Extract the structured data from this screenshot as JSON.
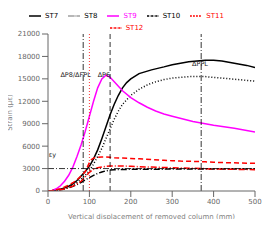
{
  "chart_data": {
    "type": "line",
    "xlabel": "Vertical displacement of removed column (mm)",
    "ylabel": "Strain (με)",
    "xlim": [
      0,
      500
    ],
    "ylim": [
      0,
      21000
    ],
    "xticks": [
      0,
      100,
      200,
      300,
      400,
      500
    ],
    "yticks": [
      0,
      3000,
      6000,
      9000,
      12000,
      15000,
      18000,
      21000
    ],
    "legend": "top",
    "series": [
      {
        "name": "ST7",
        "color": "black",
        "line_style": "solid",
        "x": [
          0,
          10,
          20,
          30,
          40,
          50,
          60,
          70,
          80,
          90,
          100,
          110,
          120,
          130,
          140,
          150,
          160,
          170,
          180,
          190,
          200,
          220,
          250,
          280,
          300,
          320,
          340,
          360,
          380,
          400,
          420,
          440,
          460,
          480,
          500
        ],
        "values": [
          0,
          50,
          130,
          250,
          420,
          650,
          950,
          1400,
          2000,
          2600,
          3300,
          4300,
          5500,
          7000,
          8600,
          10200,
          11600,
          12800,
          13800,
          14500,
          15000,
          15700,
          16200,
          16600,
          16900,
          17100,
          17300,
          17400,
          17500,
          17500,
          17400,
          17200,
          17000,
          16800,
          16500
        ]
      },
      {
        "name": "ST8",
        "color": "black",
        "line_style": "dotted",
        "x": [
          0,
          10,
          20,
          30,
          40,
          50,
          60,
          70,
          80,
          90,
          100,
          110,
          120,
          130,
          140,
          150,
          160,
          170,
          180,
          200,
          220,
          240,
          260,
          280,
          300,
          320,
          340,
          360,
          380,
          400,
          420,
          440,
          460,
          480,
          500
        ],
        "values": [
          0,
          40,
          100,
          200,
          350,
          540,
          800,
          1150,
          1600,
          2100,
          2700,
          3600,
          4600,
          5700,
          7000,
          8300,
          9600,
          10700,
          11600,
          12800,
          13600,
          14200,
          14600,
          14900,
          15100,
          15200,
          15300,
          15300,
          15300,
          15200,
          15100,
          15000,
          14900,
          14800,
          14700
        ]
      },
      {
        "name": "ST9",
        "color": "#ff00ff",
        "line_style": "solid",
        "x": [
          0,
          10,
          20,
          30,
          40,
          50,
          60,
          70,
          80,
          90,
          100,
          110,
          120,
          130,
          140,
          150,
          160,
          170,
          180,
          200,
          220,
          240,
          260,
          280,
          300,
          350,
          400,
          450,
          500
        ],
        "values": [
          0,
          80,
          300,
          700,
          1300,
          2100,
          3200,
          4600,
          6200,
          8000,
          10000,
          12000,
          13800,
          15000,
          15500,
          15200,
          14600,
          14000,
          13400,
          12500,
          11800,
          11200,
          10700,
          10300,
          10000,
          9300,
          8800,
          8400,
          7900
        ]
      },
      {
        "name": "ST10",
        "color": "black",
        "line_style": "dashdot",
        "x": [
          0,
          10,
          20,
          30,
          40,
          50,
          60,
          70,
          80,
          90,
          100,
          110,
          120,
          130,
          140,
          150,
          160,
          180,
          200,
          250,
          300,
          350,
          400,
          450,
          500
        ],
        "values": [
          0,
          30,
          80,
          160,
          280,
          430,
          620,
          860,
          1150,
          1480,
          1800,
          2100,
          2350,
          2550,
          2700,
          2800,
          2850,
          2880,
          2900,
          2920,
          2930,
          2930,
          2930,
          2930,
          2930
        ]
      },
      {
        "name": "ST11",
        "color": "red",
        "line_style": "dashed",
        "x": [
          0,
          10,
          20,
          30,
          40,
          50,
          60,
          70,
          80,
          90,
          95,
          100,
          105,
          110,
          120,
          130,
          140,
          150,
          160,
          180,
          200,
          220,
          250,
          280,
          300,
          320,
          340,
          360,
          380,
          400,
          420,
          440,
          460,
          480,
          500
        ],
        "values": [
          0,
          60,
          160,
          320,
          540,
          800,
          1100,
          1500,
          2000,
          2600,
          3200,
          3800,
          4200,
          4400,
          4500,
          4550,
          4550,
          4500,
          4450,
          4400,
          4350,
          4300,
          4200,
          4100,
          4050,
          4000,
          3980,
          3950,
          3900,
          3850,
          3800,
          3780,
          3750,
          3720,
          3700
        ]
      },
      {
        "name": "ST12",
        "color": "red",
        "line_style": "dashdot",
        "x": [
          0,
          20,
          40,
          60,
          80,
          90,
          100,
          110,
          120,
          130,
          140,
          150,
          160,
          180,
          200,
          220,
          250,
          280,
          300,
          350,
          400,
          450,
          500
        ],
        "values": [
          0,
          80,
          280,
          650,
          1300,
          1900,
          2500,
          2900,
          3100,
          3200,
          3300,
          3350,
          3350,
          3350,
          3300,
          3250,
          3200,
          3150,
          3100,
          3050,
          2950,
          2900,
          2850
        ]
      }
    ],
    "vlines": [
      {
        "x": 85,
        "color": "black",
        "line_style": "dashdot"
      },
      {
        "x": 100,
        "color": "red",
        "line_style": "dotted"
      },
      {
        "x": 150,
        "color": "black",
        "line_style": "dashed"
      },
      {
        "x": 370,
        "color": "black",
        "line_style": "dashdot"
      }
    ],
    "hlines": [
      {
        "y": 3000,
        "color": "black",
        "line_style": "dashdot"
      }
    ],
    "annotations": [
      {
        "text": "ΔP8/ΔFPL",
        "x": 30,
        "y": 15200
      },
      {
        "text": "ΔP6",
        "x": 120,
        "y": 15200
      },
      {
        "text": "ΔPPL",
        "x": 348,
        "y": 16700
      },
      {
        "text": "εy",
        "x": 2,
        "y": 4600
      }
    ]
  }
}
